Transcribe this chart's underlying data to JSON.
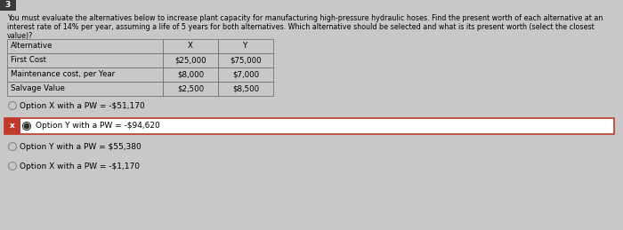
{
  "question_number": "3",
  "question_text_line1": "You must evaluate the alternatives below to increase plant capacity for manufacturing high-pressure hydraulic hoses. Find the present worth of each alternative at an",
  "question_text_line2": "interest rate of 14% per year, assuming a life of 5 years for both alternatives. Which alternative should be selected and what is its present worth (select the closest",
  "question_text_line3": "value)?",
  "table_headers": [
    "Alternative",
    "X",
    "Y"
  ],
  "table_rows": [
    [
      "First Cost",
      "$25,000",
      "$75,000"
    ],
    [
      "Maintenance cost, per Year",
      "$8,000",
      "$7,000"
    ],
    [
      "Salvage Value",
      "$2,500",
      "$8,500"
    ]
  ],
  "options": [
    {
      "label": "Option X with a PW = -$51,170",
      "selected": false,
      "marked_wrong": false
    },
    {
      "label": "Option Y with a PW = -$94,620",
      "selected": true,
      "marked_wrong": true
    },
    {
      "label": "Option Y with a PW = $55,380",
      "selected": false,
      "marked_wrong": false
    },
    {
      "label": "Option X with a PW = -$1,170",
      "selected": false,
      "marked_wrong": false
    }
  ],
  "bg_color": "#c8c8c8",
  "table_bg": "#c8c8c8",
  "selected_bg": "#ffffff",
  "selected_border": "#c0392b",
  "wrong_marker_bg": "#c0392b",
  "text_color": "#000000",
  "font_size_question": 5.8,
  "font_size_table": 6.2,
  "font_size_option": 6.5,
  "number_box_bg": "#3a3a3a",
  "number_box_text": "#ffffff"
}
